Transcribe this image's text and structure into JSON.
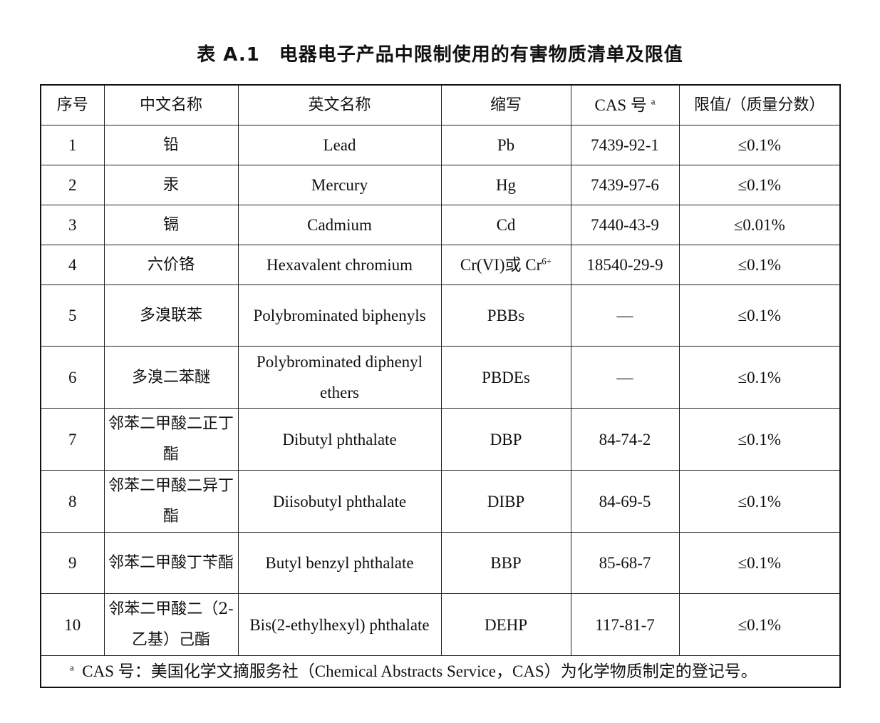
{
  "title": "表 A.1　电器电子产品中限制使用的有害物质清单及限值",
  "headers": {
    "no": "序号",
    "cn": "中文名称",
    "en": "英文名称",
    "abbr": "缩写",
    "cas": "CAS 号",
    "cas_sup": "a",
    "limit": "限值/（质量分数）"
  },
  "rows": [
    {
      "no": "1",
      "cn": "铅",
      "en": "Lead",
      "abbr": "Pb",
      "cas": "7439-92-1",
      "limit": "≤0.1%"
    },
    {
      "no": "2",
      "cn": "汞",
      "en": "Mercury",
      "abbr": "Hg",
      "cas": "7439-97-6",
      "limit": "≤0.1%"
    },
    {
      "no": "3",
      "cn": "镉",
      "en": "Cadmium",
      "abbr": "Cd",
      "cas": "7440-43-9",
      "limit": "≤0.01%"
    },
    {
      "no": "4",
      "cn": "六价铬",
      "en": "Hexavalent chromium",
      "abbr": "Cr(VI)或 Cr",
      "abbr_sup": "6+",
      "cas": "18540-29-9",
      "limit": "≤0.1%"
    },
    {
      "no": "5",
      "cn": "多溴联苯",
      "en": "Polybrominated biphenyls",
      "abbr": "PBBs",
      "cas": "—",
      "limit": "≤0.1%"
    },
    {
      "no": "6",
      "cn": "多溴二苯醚",
      "en": "Polybrominated diphenyl ethers",
      "abbr": "PBDEs",
      "cas": "—",
      "limit": "≤0.1%"
    },
    {
      "no": "7",
      "cn": "邻苯二甲酸二正丁酯",
      "en": "Dibutyl phthalate",
      "abbr": "DBP",
      "cas": "84-74-2",
      "limit": "≤0.1%"
    },
    {
      "no": "8",
      "cn": "邻苯二甲酸二异丁酯",
      "en": "Diisobutyl phthalate",
      "abbr": "DIBP",
      "cas": "84-69-5",
      "limit": "≤0.1%"
    },
    {
      "no": "9",
      "cn": "邻苯二甲酸丁苄酯",
      "en": "Butyl benzyl phthalate",
      "abbr": "BBP",
      "cas": "85-68-7",
      "limit": "≤0.1%"
    },
    {
      "no": "10",
      "cn": "邻苯二甲酸二（2-乙基）己酯",
      "en": "Bis(2-ethylhexyl) phthalate",
      "abbr": "DEHP",
      "cas": "117-81-7",
      "limit": "≤0.1%"
    }
  ],
  "footnote": {
    "mark": "a",
    "text": "CAS 号：美国化学文摘服务社（Chemical Abstracts Service，CAS）为化学物质制定的登记号。"
  }
}
